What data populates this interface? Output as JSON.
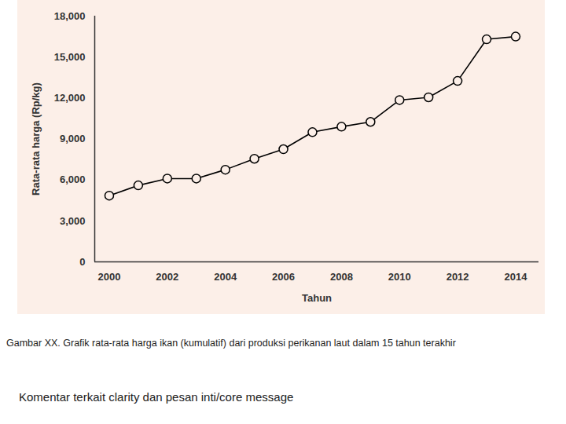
{
  "chart_data": {
    "type": "line",
    "x_label": "Tahun",
    "y_label": "Rata-rata harga (Rp/kg)",
    "caption": "Gambar XX. Grafik rata-rata harga ikan (kumulatif) dari produksi perikanan laut dalam 15 tahun terakhir",
    "note": "Komentar terkait clarity dan pesan inti/core message",
    "x": [
      2000,
      2001,
      2002,
      2003,
      2004,
      2005,
      2006,
      2007,
      2008,
      2009,
      2010,
      2011,
      2012,
      2013,
      2014
    ],
    "values": [
      4850,
      5600,
      6100,
      6100,
      6750,
      7550,
      8250,
      9500,
      9900,
      10250,
      11850,
      12050,
      13250,
      16300,
      16500
    ],
    "color": "#000000",
    "marker": "circle",
    "line_style": "solid",
    "grid": false,
    "xlim": [
      1999.5,
      2014.8
    ],
    "xticks": [
      2000,
      2002,
      2004,
      2006,
      2008,
      2010,
      2012,
      2014
    ],
    "ylim": [
      0,
      18000
    ],
    "yticks": [
      0,
      {
        "value": 3000,
        "label": "3,000"
      },
      {
        "value": 6000,
        "label": "6,000"
      },
      {
        "value": 9000,
        "label": "9,000"
      },
      {
        "value": 12000,
        "label": "12,000"
      },
      {
        "value": 15000,
        "label": "15,000"
      },
      {
        "value": 18000,
        "label": "18,000"
      }
    ]
  }
}
